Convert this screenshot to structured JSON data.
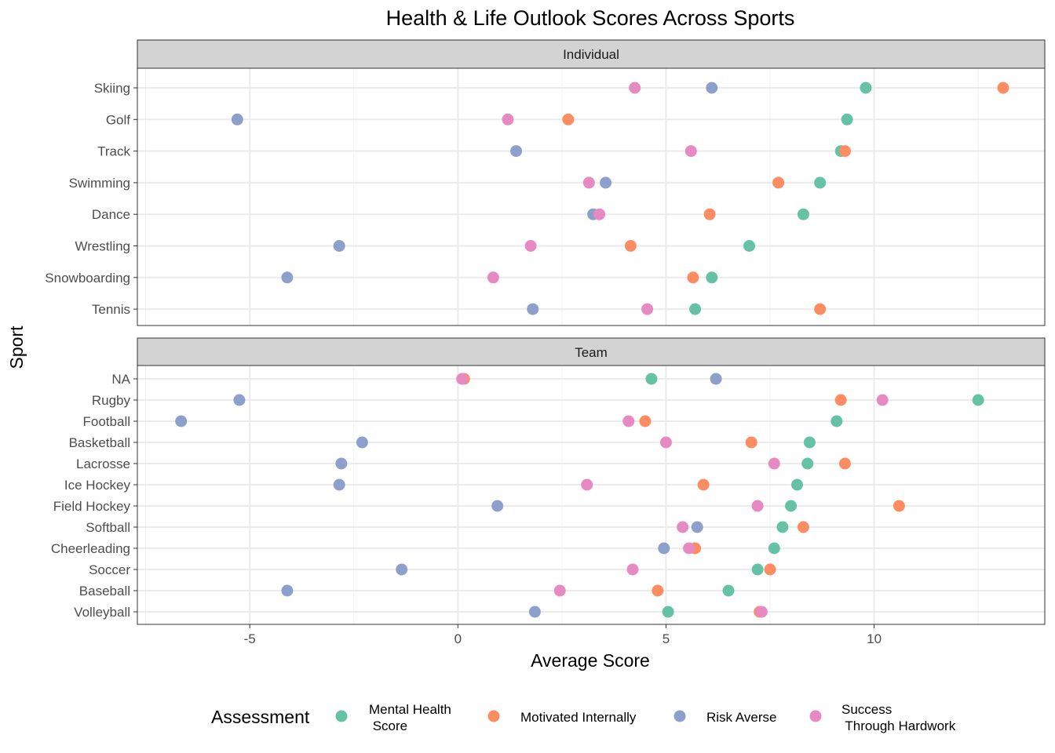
{
  "chart_data": {
    "type": "scatter",
    "title": "Health & Life Outlook Scores Across Sports",
    "xlabel": "Average Score",
    "ylabel": "Sport",
    "xlim": [
      -7.7,
      14.1
    ],
    "x_ticks": [
      -5,
      0,
      5,
      10
    ],
    "x_tick_labels": [
      "-5",
      "0",
      "5",
      "10"
    ],
    "grid": true,
    "legend": {
      "title": "Assessment",
      "position": "bottom",
      "entries": [
        {
          "key": "mental",
          "lines": [
            "Mental Health",
            " Score"
          ]
        },
        {
          "key": "motivated",
          "lines": [
            "Motivated Internally"
          ]
        },
        {
          "key": "risk",
          "lines": [
            "Risk Averse"
          ]
        },
        {
          "key": "success",
          "lines": [
            "Success",
            " Through Hardwork"
          ]
        }
      ]
    },
    "colors": {
      "mental": "#66c2a5",
      "motivated": "#fc8d62",
      "risk": "#8da0cb",
      "success": "#e78ac3"
    },
    "panels": [
      {
        "name": "Individual",
        "sports": [
          "Skiing",
          "Golf",
          "Track",
          "Swimming",
          "Dance",
          "Wrestling",
          "Snowboarding",
          "Tennis"
        ],
        "values": {
          "mental": [
            9.8,
            9.35,
            9.2,
            8.7,
            8.3,
            7.0,
            6.1,
            5.7
          ],
          "motivated": [
            13.1,
            2.65,
            9.3,
            7.7,
            6.05,
            4.15,
            5.65,
            8.7
          ],
          "risk": [
            6.1,
            -5.3,
            1.4,
            3.55,
            3.25,
            -2.85,
            -4.1,
            1.8
          ],
          "success": [
            4.25,
            1.2,
            5.6,
            3.15,
            3.4,
            1.75,
            0.85,
            4.55
          ]
        }
      },
      {
        "name": "Team",
        "sports": [
          "NA",
          "Rugby",
          "Football",
          "Basketball",
          "Lacrosse",
          "Ice Hockey",
          "Field Hockey",
          "Softball",
          "Cheerleading",
          "Soccer",
          "Baseball",
          "Volleyball"
        ],
        "values": {
          "mental": [
            4.65,
            12.5,
            9.1,
            8.45,
            8.4,
            8.15,
            8.0,
            7.8,
            7.6,
            7.2,
            6.5,
            5.05
          ],
          "motivated": [
            0.15,
            9.2,
            4.5,
            7.05,
            9.3,
            5.9,
            10.6,
            8.3,
            5.7,
            7.5,
            4.8,
            7.25
          ],
          "risk": [
            6.2,
            -5.25,
            -6.65,
            -2.3,
            -2.8,
            -2.85,
            0.95,
            5.75,
            4.95,
            -1.35,
            -4.1,
            1.85
          ],
          "success": [
            0.1,
            10.2,
            4.1,
            5.0,
            7.6,
            3.1,
            7.2,
            5.4,
            5.55,
            4.2,
            2.45,
            7.3
          ]
        }
      }
    ]
  }
}
